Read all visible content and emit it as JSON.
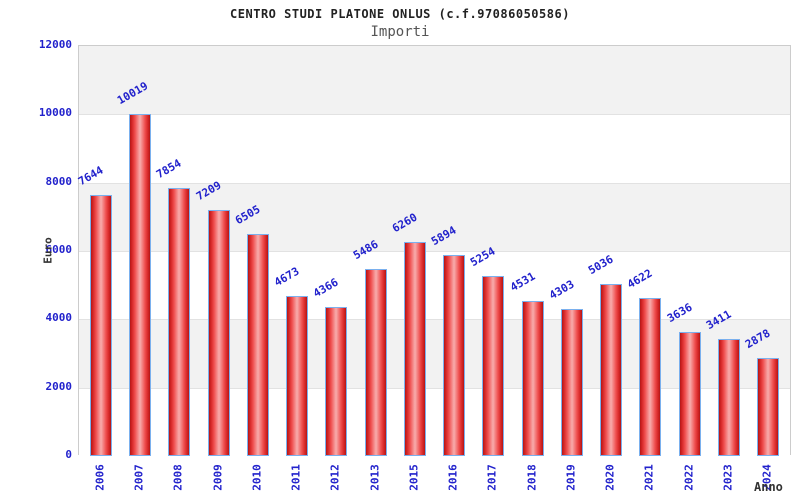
{
  "header": {
    "title": "CENTRO STUDI PLATONE ONLUS (c.f.97086050586)",
    "subtitle": "Importi"
  },
  "chart_data": {
    "type": "bar",
    "title": "CENTRO STUDI PLATONE ONLUS (c.f.97086050586)",
    "subtitle": "Importi",
    "xlabel": "Anno",
    "ylabel": "Euro",
    "categories": [
      "2006",
      "2007",
      "2008",
      "2009",
      "2010",
      "2011",
      "2012",
      "2013",
      "2015",
      "2016",
      "2017",
      "2018",
      "2019",
      "2020",
      "2021",
      "2022",
      "2023",
      "2024"
    ],
    "values": [
      7644,
      10019,
      7854,
      7209,
      6505,
      4673,
      4366,
      5486,
      6260,
      5894,
      5254,
      4531,
      4303,
      5036,
      4622,
      3636,
      3411,
      2878
    ],
    "ylim": [
      0,
      12000
    ],
    "ytick_step": 2000,
    "ytick_labels": [
      "0",
      "2000",
      "4000",
      "6000",
      "8000",
      "10000",
      "12000"
    ],
    "grid": "horizontal-bands-alternating",
    "legend": "none",
    "value_labels_rotation_deg": -30,
    "colors": {
      "bar_edge": "#b51515",
      "bar_mid": "#ef4f4f",
      "bar_highlight": "#f7a6a6",
      "bar_border": "#7ab0ee",
      "tick_label_blue": "#2222cc",
      "band_gray": "#f2f2f2",
      "band_white": "#ffffff",
      "gridline": "#e2e2e2",
      "plot_border": "#cccccc",
      "title_color": "#222222",
      "subtitle_color": "#555555",
      "axis_title_color": "#333333"
    }
  }
}
